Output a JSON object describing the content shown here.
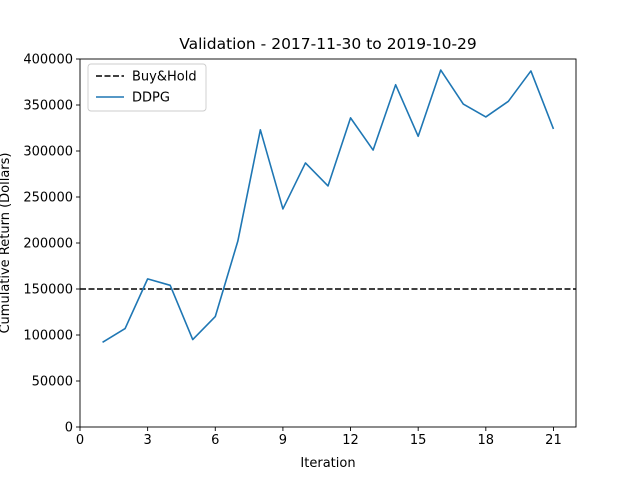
{
  "chart_data": {
    "type": "line",
    "title": "Validation - 2017-11-30 to 2019-10-29",
    "xlabel": "Iteration",
    "ylabel": "Cumulative Return (Dollars)",
    "xlim": [
      0,
      22
    ],
    "ylim": [
      0,
      400000
    ],
    "xticks": [
      0,
      3,
      6,
      9,
      12,
      15,
      18,
      21
    ],
    "yticks": [
      0,
      50000,
      100000,
      150000,
      200000,
      250000,
      300000,
      350000,
      400000
    ],
    "grid": false,
    "legend_position": "top-left",
    "series": [
      {
        "name": "Buy&Hold",
        "kind": "hline",
        "style": "dashed",
        "color": "#000000",
        "y": 150000
      },
      {
        "name": "DDPG",
        "kind": "line",
        "style": "solid",
        "color": "#1f77b4",
        "x": [
          1,
          2,
          3,
          4,
          5,
          6,
          7,
          8,
          9,
          10,
          11,
          12,
          13,
          14,
          15,
          16,
          17,
          18,
          19,
          20,
          21
        ],
        "y": [
          92000,
          107000,
          161000,
          154000,
          95000,
          120000,
          202000,
          323000,
          237000,
          287000,
          262000,
          336000,
          301000,
          372000,
          316000,
          388000,
          351000,
          337000,
          354000,
          387000,
          324000
        ]
      }
    ]
  }
}
